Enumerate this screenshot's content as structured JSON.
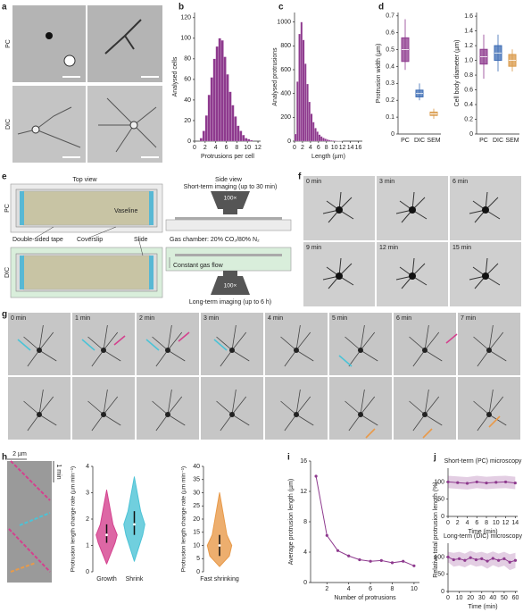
{
  "panel_labels": [
    "a",
    "b",
    "c",
    "d",
    "e",
    "f",
    "g",
    "h",
    "i",
    "j"
  ],
  "a": {
    "row_labels": [
      "PC",
      "DIC"
    ]
  },
  "e": {
    "top_view": "Top view",
    "side_view": "Side view",
    "short_term": "Short-term imaging (up to 30 min)",
    "objective": "100×",
    "pc": "PC",
    "dic": "DIC",
    "vaseline": "Vaseline",
    "tape": "Double-sided tape",
    "coverslip": "Coverslip",
    "slide": "Slide",
    "gas_chamber": "Gas chamber: 20% CO₂/80% N₂",
    "gas_flow": "Constant gas flow",
    "objective_2": "100×",
    "long_term": "Long-term imaging (up to 6 h)"
  },
  "f": {
    "times": [
      "0 min",
      "3 min",
      "6 min",
      "9 min",
      "12 min",
      "15 min"
    ]
  },
  "g": {
    "times": [
      "0 min",
      "1 min",
      "2 min",
      "3 min",
      "4 min",
      "5 min",
      "6 min",
      "7 min"
    ]
  },
  "h": {
    "scale_x": "2 µm",
    "scale_t": "1 min"
  },
  "chart_data": [
    {
      "type": "histogram",
      "xlabel": "Protrusions per cell",
      "ylabel": "Analysed cells",
      "color": "#8e3a8e",
      "bins": [
        1,
        1.5,
        2,
        2.5,
        3,
        3.5,
        4,
        4.5,
        5,
        5.5,
        6,
        6.5,
        7,
        7.5,
        8,
        8.5,
        9,
        9.5,
        10,
        10.5,
        11
      ],
      "values": [
        3,
        10,
        25,
        45,
        62,
        80,
        92,
        100,
        98,
        82,
        65,
        48,
        35,
        24,
        15,
        10,
        6,
        3,
        2,
        1
      ],
      "xlim": [
        0,
        12.5
      ],
      "xticks": [
        0,
        2,
        4,
        6,
        8,
        10,
        12
      ],
      "ylim": [
        0,
        125
      ],
      "yticks": [
        0,
        20,
        40,
        60,
        80,
        100,
        120
      ]
    },
    {
      "type": "histogram",
      "xlabel": "Length (µm)",
      "ylabel": "Analysed protrusions",
      "color": "#8e3a8e",
      "bins": [
        0,
        0.5,
        1,
        1.5,
        2,
        2.5,
        3,
        3.5,
        4,
        4.5,
        5,
        5.5,
        6,
        6.5,
        7,
        7.5,
        8,
        8.5,
        9,
        9.5,
        10,
        10.5,
        11,
        11.5,
        12
      ],
      "values": [
        60,
        500,
        900,
        1000,
        850,
        650,
        480,
        330,
        230,
        160,
        110,
        80,
        55,
        40,
        28,
        20,
        14,
        10,
        7,
        5,
        4,
        3,
        2,
        1
      ],
      "xlim": [
        0,
        17
      ],
      "xticks": [
        0,
        2,
        4,
        6,
        8,
        10,
        12,
        14,
        16
      ],
      "ylim": [
        0,
        1080
      ],
      "yticks": [
        0,
        200,
        400,
        600,
        800,
        1000
      ]
    },
    {
      "type": "box",
      "ylabel": "Protrusion width (µm)",
      "categories": [
        "PC",
        "DIC",
        "SEM"
      ],
      "colors": [
        "#8e3a8e",
        "#3c6cb4",
        "#d99a4a"
      ],
      "boxes": [
        {
          "min": 0.38,
          "q1": 0.43,
          "median": 0.5,
          "q3": 0.57,
          "max": 0.68
        },
        {
          "min": 0.2,
          "q1": 0.22,
          "median": 0.24,
          "q3": 0.26,
          "max": 0.3
        },
        {
          "min": 0.09,
          "q1": 0.11,
          "median": 0.12,
          "q3": 0.13,
          "max": 0.15
        }
      ],
      "ylim": [
        0,
        0.72
      ],
      "yticks": [
        0,
        0.1,
        0.2,
        0.3,
        0.4,
        0.5,
        0.6,
        0.7
      ]
    },
    {
      "type": "box",
      "ylabel": "Cell body diameter (µm)",
      "categories": [
        "PC",
        "DIC",
        "SEM"
      ],
      "colors": [
        "#8e3a8e",
        "#3c6cb4",
        "#d99a4a"
      ],
      "boxes": [
        {
          "min": 0.75,
          "q1": 0.95,
          "median": 1.05,
          "q3": 1.15,
          "max": 1.35
        },
        {
          "min": 0.85,
          "q1": 1.0,
          "median": 1.1,
          "q3": 1.2,
          "max": 1.35
        },
        {
          "min": 0.85,
          "q1": 0.92,
          "median": 1.0,
          "q3": 1.08,
          "max": 1.15
        }
      ],
      "ylim": [
        0,
        1.65
      ],
      "yticks": [
        0,
        0.2,
        0.4,
        0.6,
        0.8,
        {
          "value": 1,
          "label": "1.0"
        },
        1.2,
        1.4,
        1.6
      ]
    },
    {
      "type": "violin",
      "ylabel": "Protrusion length change rate (µm min⁻¹)",
      "categories": [
        "Growth",
        "Shrink"
      ],
      "colors": [
        "#d4418e",
        "#4cc3d6"
      ],
      "boxes": [
        {
          "min": 0.3,
          "q1": 1.1,
          "median": 1.4,
          "q3": 1.8,
          "max": 3.1
        },
        {
          "min": 0.4,
          "q1": 1.4,
          "median": 1.8,
          "q3": 2.3,
          "max": 3.6
        }
      ],
      "ylim": [
        0,
        4
      ],
      "yticks": [
        0,
        1,
        2,
        3,
        4
      ]
    },
    {
      "type": "violin",
      "ylabel": "Protrusion length change rate (µm min⁻¹)",
      "categories": [
        "Fast shrinking"
      ],
      "colors": [
        "#e89a4a"
      ],
      "boxes": [
        {
          "min": 2,
          "q1": 6,
          "median": 10,
          "q3": 14,
          "max": 30
        }
      ],
      "ylim": [
        0,
        40
      ],
      "yticks": [
        0,
        5,
        10,
        15,
        20,
        25,
        30,
        35,
        40
      ]
    },
    {
      "type": "line",
      "xlabel": "Number of protrusions",
      "ylabel": "Average protrusion length (µm)",
      "x": [
        1,
        2,
        3,
        4,
        5,
        6,
        7,
        8,
        9,
        10
      ],
      "series": [
        {
          "color": "#8e3a8e",
          "values": [
            14,
            6.2,
            4.2,
            3.5,
            3.0,
            2.8,
            2.9,
            2.6,
            2.8,
            2.2
          ]
        }
      ],
      "xlim": [
        0.5,
        10.5
      ],
      "xticks": [
        2,
        4,
        6,
        8,
        10
      ],
      "ylim": [
        0,
        16
      ],
      "yticks": [
        0,
        4,
        8,
        12,
        16
      ]
    },
    {
      "type": "line",
      "title": "Short-term (PC) microscopy",
      "xlabel": "Time (min)",
      "ylabel": "Relative total protrusion length (%)",
      "x": [
        0,
        2,
        4,
        6,
        8,
        10,
        12,
        14
      ],
      "series": [
        {
          "color": "#8e3a8e",
          "values": [
            100,
            98,
            96,
            100,
            97,
            99,
            100,
            97
          ],
          "lower": [
            82,
            80,
            78,
            82,
            79,
            81,
            82,
            79
          ],
          "upper": [
            118,
            116,
            114,
            118,
            115,
            117,
            118,
            115
          ]
        }
      ],
      "xlim": [
        0,
        14.5
      ],
      "xticks": [
        0,
        2,
        4,
        6,
        8,
        10,
        12,
        14
      ],
      "ylim": [
        0,
        140
      ],
      "yticks": [
        0,
        50,
        100
      ]
    },
    {
      "type": "line",
      "title": "Long-term (DIC) microscopy",
      "xlabel": "Time (min)",
      "x": [
        0,
        5,
        10,
        15,
        20,
        25,
        30,
        35,
        40,
        45,
        50,
        55,
        60
      ],
      "series": [
        {
          "color": "#8e3a8e",
          "values": [
            100,
            92,
            95,
            90,
            98,
            92,
            95,
            88,
            96,
            90,
            95,
            85,
            90
          ],
          "lower": [
            85,
            72,
            75,
            70,
            78,
            72,
            75,
            66,
            76,
            70,
            75,
            62,
            68
          ],
          "upper": [
            115,
            112,
            115,
            110,
            118,
            112,
            115,
            110,
            116,
            110,
            115,
            108,
            112
          ]
        }
      ],
      "xlim": [
        0,
        62
      ],
      "xticks": [
        0,
        10,
        20,
        30,
        40,
        50,
        60
      ],
      "ylim": [
        0,
        140
      ],
      "yticks": [
        0,
        50,
        100
      ]
    }
  ]
}
